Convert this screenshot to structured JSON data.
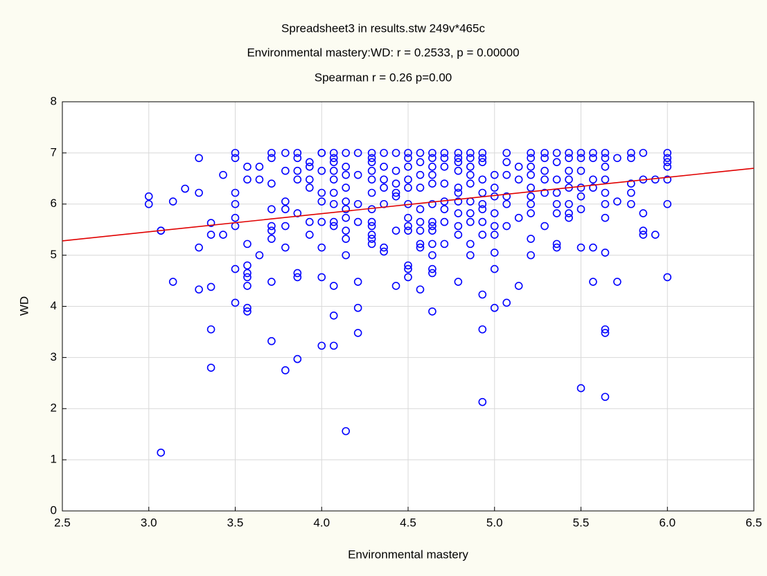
{
  "chart_data": {
    "type": "scatter",
    "title": "Spreadsheet3 in results.stw 249v*465c",
    "subtitle": "Environmental mastery:WD:   r = 0.2533, p = 0.00000",
    "annotation": "Spearman r = 0.26 p=0.00",
    "xlabel": "Environmental mastery",
    "ylabel": "WD",
    "color": "#0000ff",
    "grid": true,
    "xlim": [
      2.5,
      6.5
    ],
    "ylim": [
      0,
      8
    ],
    "xticks": [
      2.5,
      {
        "value": 3,
        "label": "3.0"
      },
      3.5,
      {
        "value": 4,
        "label": "4.0"
      },
      4.5,
      {
        "value": 5,
        "label": "5.0"
      },
      5.5,
      {
        "value": 6,
        "label": "6.0"
      },
      6.5
    ],
    "yticks": [
      0,
      1,
      2,
      3,
      4,
      5,
      6,
      7,
      8
    ],
    "fit_line": {
      "color": "#e00000",
      "x": [
        2.5,
        6.5
      ],
      "y": [
        5.28,
        6.7
      ]
    },
    "x": [
      3.0,
      3.0,
      3.07,
      3.07,
      3.07,
      3.14,
      3.14,
      3.21,
      3.29,
      3.29,
      3.29,
      3.29,
      3.36,
      3.36,
      3.36,
      3.36,
      3.36,
      3.43,
      3.43,
      3.5,
      3.5,
      3.5,
      3.5,
      3.5,
      3.5,
      3.5,
      3.5,
      3.57,
      3.57,
      3.57,
      3.57,
      3.57,
      3.57,
      3.57,
      3.57,
      3.57,
      3.64,
      3.64,
      3.64,
      3.71,
      3.71,
      3.71,
      3.71,
      3.71,
      3.71,
      3.71,
      3.71,
      3.71,
      3.79,
      3.79,
      3.79,
      3.79,
      3.79,
      3.79,
      3.79,
      3.86,
      3.86,
      3.86,
      3.86,
      3.86,
      3.86,
      3.86,
      3.86,
      3.93,
      3.93,
      3.93,
      3.93,
      3.93,
      3.93,
      4.0,
      4.0,
      4.0,
      4.0,
      4.0,
      4.0,
      4.0,
      4.0,
      4.0,
      4.07,
      4.07,
      4.07,
      4.07,
      4.07,
      4.07,
      4.07,
      4.07,
      4.07,
      4.07,
      4.07,
      4.07,
      4.14,
      4.14,
      4.14,
      4.14,
      4.14,
      4.14,
      4.14,
      4.14,
      4.14,
      4.14,
      4.14,
      4.21,
      4.21,
      4.21,
      4.21,
      4.21,
      4.21,
      4.21,
      4.29,
      4.29,
      4.29,
      4.29,
      4.29,
      4.29,
      4.29,
      4.29,
      4.29,
      4.29,
      4.29,
      4.29,
      4.36,
      4.36,
      4.36,
      4.36,
      4.36,
      4.36,
      4.36,
      4.43,
      4.43,
      4.43,
      4.43,
      4.43,
      4.43,
      4.43,
      4.5,
      4.5,
      4.5,
      4.5,
      4.5,
      4.5,
      4.5,
      4.5,
      4.5,
      4.5,
      4.5,
      4.5,
      4.57,
      4.57,
      4.57,
      4.57,
      4.57,
      4.57,
      4.57,
      4.57,
      4.57,
      4.57,
      4.64,
      4.64,
      4.64,
      4.64,
      4.64,
      4.64,
      4.64,
      4.64,
      4.64,
      4.64,
      4.64,
      4.64,
      4.64,
      4.64,
      4.71,
      4.71,
      4.71,
      4.71,
      4.71,
      4.71,
      4.71,
      4.71,
      4.79,
      4.79,
      4.79,
      4.79,
      4.79,
      4.79,
      4.79,
      4.79,
      4.79,
      4.79,
      4.79,
      4.86,
      4.86,
      4.86,
      4.86,
      4.86,
      4.86,
      4.86,
      4.86,
      4.86,
      4.86,
      4.93,
      4.93,
      4.93,
      4.93,
      4.93,
      4.93,
      4.93,
      4.93,
      4.93,
      4.93,
      4.93,
      4.93,
      5.0,
      5.0,
      5.0,
      5.0,
      5.0,
      5.0,
      5.0,
      5.0,
      5.0,
      5.07,
      5.07,
      5.07,
      5.07,
      5.07,
      5.07,
      5.07,
      5.14,
      5.14,
      5.14,
      5.14,
      5.21,
      5.21,
      5.21,
      5.21,
      5.21,
      5.21,
      5.21,
      5.21,
      5.21,
      5.21,
      5.29,
      5.29,
      5.29,
      5.29,
      5.29,
      5.29,
      5.36,
      5.36,
      5.36,
      5.36,
      5.36,
      5.36,
      5.36,
      5.36,
      5.43,
      5.43,
      5.43,
      5.43,
      5.43,
      5.43,
      5.43,
      5.43,
      5.5,
      5.5,
      5.5,
      5.5,
      5.5,
      5.5,
      5.5,
      5.5,
      5.57,
      5.57,
      5.57,
      5.57,
      5.57,
      5.57,
      5.64,
      5.64,
      5.64,
      5.64,
      5.64,
      5.64,
      5.64,
      5.64,
      5.64,
      5.64,
      5.64,
      5.71,
      5.71,
      5.71,
      5.79,
      5.79,
      5.79,
      5.79,
      5.79,
      5.86,
      5.86,
      5.86,
      5.86,
      5.86,
      5.93,
      5.93,
      6.0,
      6.0,
      6.0,
      6.0,
      6.0,
      6.0,
      6.0
    ],
    "y": [
      6.15,
      6.0,
      5.48,
      5.48,
      1.14,
      6.05,
      4.48,
      6.3,
      6.9,
      6.22,
      5.15,
      4.33,
      5.63,
      5.4,
      4.38,
      3.55,
      2.8,
      6.57,
      5.4,
      7.0,
      6.9,
      6.22,
      6.0,
      5.73,
      5.57,
      4.73,
      4.07,
      6.73,
      6.48,
      5.22,
      4.8,
      4.65,
      4.57,
      4.4,
      3.97,
      3.9,
      6.73,
      6.48,
      5.0,
      7.0,
      6.9,
      6.4,
      5.9,
      5.57,
      5.48,
      5.32,
      4.48,
      3.32,
      7.0,
      6.65,
      6.05,
      5.9,
      5.57,
      5.15,
      2.75,
      7.0,
      6.9,
      6.65,
      6.48,
      5.82,
      4.65,
      4.57,
      2.97,
      6.82,
      6.73,
      6.48,
      6.32,
      5.65,
      5.4,
      7.0,
      7.0,
      6.65,
      6.22,
      6.05,
      5.65,
      5.15,
      4.57,
      3.23,
      7.0,
      6.9,
      6.82,
      6.65,
      6.48,
      6.22,
      6.0,
      5.65,
      5.57,
      4.4,
      3.82,
      3.23,
      7.0,
      6.73,
      6.57,
      6.32,
      6.05,
      5.9,
      5.73,
      5.48,
      5.32,
      5.0,
      1.56,
      7.0,
      6.57,
      6.0,
      5.65,
      4.48,
      3.97,
      3.48,
      7.0,
      6.9,
      6.82,
      6.65,
      6.48,
      6.22,
      5.9,
      5.65,
      5.57,
      5.4,
      5.32,
      5.22,
      7.0,
      6.73,
      6.48,
      6.32,
      6.0,
      5.15,
      5.07,
      7.0,
      6.65,
      6.4,
      6.22,
      6.15,
      5.48,
      4.4,
      7.0,
      6.9,
      6.73,
      6.48,
      6.32,
      6.0,
      5.73,
      5.57,
      5.48,
      4.8,
      4.73,
      4.57,
      7.0,
      6.82,
      6.57,
      6.32,
      5.9,
      5.65,
      5.48,
      5.22,
      5.15,
      4.33,
      7.0,
      6.9,
      6.73,
      6.57,
      6.4,
      6.0,
      5.65,
      5.57,
      5.48,
      5.22,
      5.0,
      4.73,
      4.65,
      3.9,
      7.0,
      6.9,
      6.73,
      6.4,
      6.05,
      5.9,
      5.65,
      5.22,
      7.0,
      6.9,
      6.82,
      6.65,
      6.32,
      6.22,
      6.05,
      5.82,
      5.57,
      5.4,
      4.48,
      7.0,
      6.9,
      6.73,
      6.57,
      6.4,
      6.05,
      5.82,
      5.65,
      5.22,
      5.0,
      7.0,
      6.9,
      6.82,
      6.48,
      6.22,
      6.0,
      5.9,
      5.65,
      5.4,
      4.23,
      3.55,
      2.13,
      6.57,
      6.32,
      6.15,
      5.82,
      5.57,
      5.4,
      5.05,
      4.73,
      3.97,
      7.0,
      6.82,
      6.57,
      6.15,
      6.0,
      5.57,
      4.07,
      6.73,
      6.48,
      5.73,
      4.4,
      7.0,
      6.9,
      6.73,
      6.57,
      6.32,
      6.15,
      6.0,
      5.82,
      5.32,
      5.0,
      7.0,
      6.9,
      6.65,
      6.48,
      6.22,
      5.57,
      7.0,
      6.82,
      6.48,
      6.22,
      6.0,
      5.82,
      5.22,
      5.15,
      7.0,
      6.9,
      6.65,
      6.48,
      6.32,
      6.0,
      5.82,
      5.73,
      7.0,
      6.9,
      6.65,
      6.32,
      6.15,
      5.9,
      5.15,
      2.4,
      7.0,
      6.9,
      6.48,
      6.32,
      5.15,
      4.48,
      7.0,
      6.9,
      6.73,
      6.48,
      6.22,
      6.0,
      5.73,
      5.05,
      3.55,
      3.48,
      2.23,
      6.9,
      6.05,
      4.48,
      7.0,
      6.9,
      6.4,
      6.22,
      6.0,
      7.0,
      6.48,
      5.82,
      5.48,
      5.4,
      6.48,
      5.4,
      7.0,
      6.9,
      6.82,
      6.73,
      6.48,
      6.0,
      4.57
    ]
  }
}
